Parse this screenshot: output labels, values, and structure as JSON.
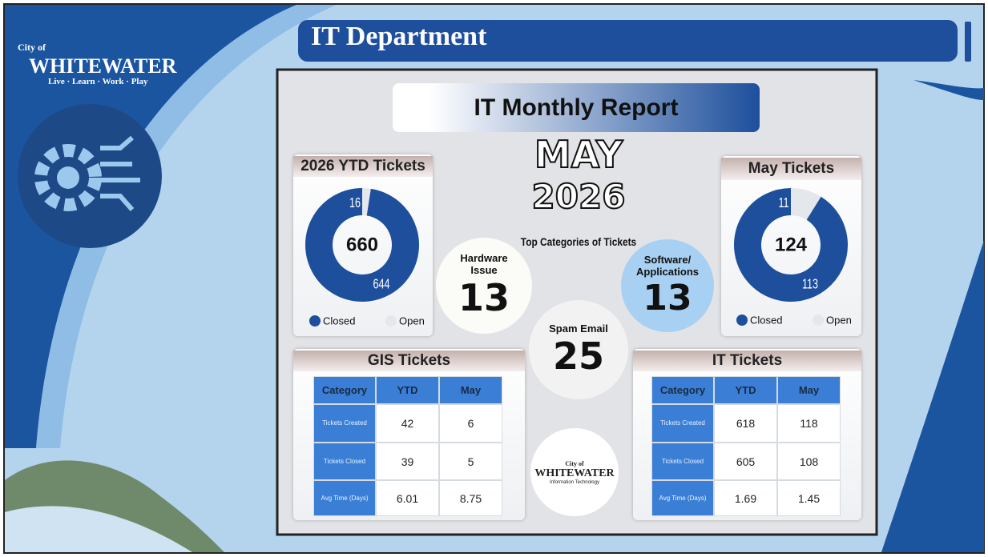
{
  "header": {
    "logo_line1": "City of",
    "logo_name": "WHITEWATER",
    "logo_tagline": "Live · Learn · Work · Play",
    "title": "IT Department"
  },
  "report": {
    "title": "IT Monthly Report",
    "month": "MAY",
    "year": "2026",
    "top_categories_label": "Top Categories of Tickets"
  },
  "ytd_tickets": {
    "title": "2026 YTD Tickets",
    "total": 660,
    "segments": [
      {
        "name": "Closed",
        "value": 644,
        "color": "#1d4f9c"
      },
      {
        "name": "Open",
        "value": 16,
        "color": "#e4e7eb"
      }
    ]
  },
  "may_tickets": {
    "title": "May Tickets",
    "total": 124,
    "segments": [
      {
        "name": "Closed",
        "value": 113,
        "color": "#1d4f9c"
      },
      {
        "name": "Open",
        "value": 11,
        "color": "#e4e7eb"
      }
    ]
  },
  "categories": [
    {
      "label": "Hardware Issue",
      "value": 13
    },
    {
      "label": "Software/ Applications",
      "value": 13
    },
    {
      "label": "Spam Email",
      "value": 25
    }
  ],
  "gis_table": {
    "title": "GIS Tickets",
    "columns": [
      "Category",
      "YTD",
      "May"
    ],
    "rows": [
      [
        "Tickets Created",
        42,
        6
      ],
      [
        "Tickets Closed",
        39,
        5
      ],
      [
        "Avg Time (Days)",
        6.01,
        8.75
      ]
    ]
  },
  "it_table": {
    "title": "IT Tickets",
    "columns": [
      "Category",
      "YTD",
      "May"
    ],
    "rows": [
      [
        "Tickets Created",
        618,
        118
      ],
      [
        "Tickets Closed",
        605,
        108
      ],
      [
        "Avg Time (Days)",
        1.69,
        1.45
      ]
    ]
  },
  "footer_logo": {
    "line1": "City of",
    "name": "WHITEWATER",
    "tagline": "Information Technology"
  }
}
